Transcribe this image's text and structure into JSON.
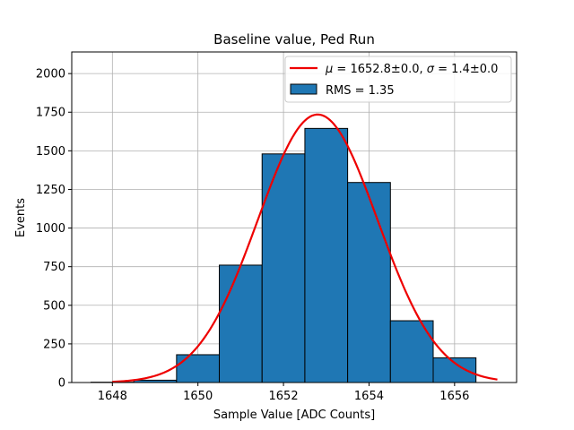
{
  "chart_data": {
    "type": "bar",
    "title": "Baseline value, Ped Run",
    "xlabel": "Sample Value [ADC Counts]",
    "ylabel": "Events",
    "xlim": [
      1647.05,
      1657.45
    ],
    "ylim": [
      0,
      2140
    ],
    "grid": true,
    "bin_width": 1,
    "histogram": {
      "name": "RMS = 1.35",
      "color": "#1f77b4",
      "edgecolor": "#000000",
      "bin_left_edges": [
        1647.5,
        1648.5,
        1649.5,
        1650.5,
        1651.5,
        1652.5,
        1653.5,
        1654.5,
        1655.5
      ],
      "values": [
        2,
        15,
        180,
        760,
        1480,
        1645,
        1295,
        400,
        160
      ]
    },
    "fit": {
      "name": "Gaussian fit",
      "legend_label": "$\\mu = 1652.8 \\pm 0.0$, $\\sigma = 1.4 \\pm 0.0$",
      "legend_mu_text": "μ",
      "legend_mid_text": " = 1652.8±0.0, ",
      "legend_sigma_text": "σ",
      "legend_end_text": " = 1.4±0.0",
      "color": "#ee0000",
      "mu": 1652.8,
      "sigma": 1.4,
      "amplitude": 1735,
      "x_range": [
        1648,
        1657
      ]
    },
    "xticks": [
      1648,
      1650,
      1652,
      1654,
      1656
    ],
    "xtick_labels": [
      "1648",
      "1650",
      "1652",
      "1654",
      "1656"
    ],
    "yticks": [
      0,
      250,
      500,
      750,
      1000,
      1250,
      1500,
      1750,
      2000
    ],
    "ytick_labels": [
      "0",
      "250",
      "500",
      "750",
      "1000",
      "1250",
      "1500",
      "1750",
      "2000"
    ],
    "legend_position": "top-right"
  }
}
